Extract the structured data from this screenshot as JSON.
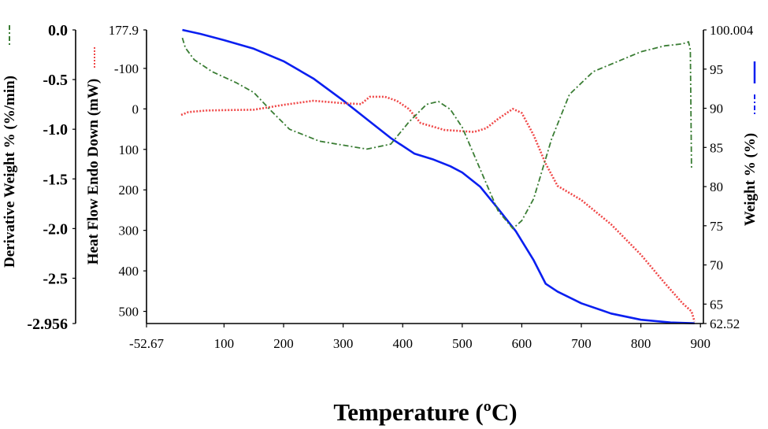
{
  "chart_data": {
    "type": "line",
    "xlabel": "Temperature (ºC)",
    "x_ticks": [
      "-52.67",
      "100",
      "200",
      "300",
      "400",
      "500",
      "600",
      "700",
      "800",
      "900"
    ],
    "xlim": [
      -52.67,
      900
    ],
    "axes": {
      "derivative": {
        "label": "Derivative Weight % (%/min)",
        "ticks": [
          "0.0",
          "-0.5",
          "-1.0",
          "-1.5",
          "-2.0",
          "-2.5",
          "-2.956"
        ],
        "range": [
          0.0,
          -2.956
        ]
      },
      "heat_flow": {
        "label": "Heat Flow Endo Down (mW)",
        "ticks": [
          "177.9",
          "-100",
          "0",
          "100",
          "200",
          "300",
          "400",
          "500"
        ],
        "range": [
          -195,
          530
        ]
      },
      "weight": {
        "label": "Weight % (%)",
        "ticks": [
          "100.004",
          "95",
          "90",
          "85",
          "80",
          "75",
          "70",
          "65",
          "62.52"
        ],
        "range": [
          100.004,
          62.52
        ]
      }
    },
    "colors": {
      "weight": "#0a1ff0",
      "heat_flow": "#f04848",
      "derivative": "#3a7d34"
    },
    "series": [
      {
        "key": "weight",
        "axis": "weight",
        "style": "solid",
        "points": [
          [
            30,
            100.0
          ],
          [
            60,
            99.5
          ],
          [
            100,
            98.7
          ],
          [
            150,
            97.6
          ],
          [
            200,
            96.0
          ],
          [
            250,
            93.8
          ],
          [
            300,
            91.0
          ],
          [
            350,
            88.0
          ],
          [
            380,
            86.2
          ],
          [
            420,
            84.2
          ],
          [
            450,
            83.5
          ],
          [
            480,
            82.6
          ],
          [
            500,
            81.8
          ],
          [
            530,
            80.0
          ],
          [
            560,
            77.2
          ],
          [
            590,
            74.3
          ],
          [
            620,
            70.6
          ],
          [
            640,
            67.6
          ],
          [
            660,
            66.6
          ],
          [
            700,
            65.1
          ],
          [
            750,
            63.8
          ],
          [
            800,
            63.0
          ],
          [
            850,
            62.65
          ],
          [
            890,
            62.55
          ]
        ]
      },
      {
        "key": "heat_flow",
        "axis": "heat_flow",
        "style": "dotted",
        "points": [
          [
            28,
            15
          ],
          [
            40,
            8
          ],
          [
            70,
            4
          ],
          [
            100,
            3
          ],
          [
            150,
            2
          ],
          [
            200,
            -10
          ],
          [
            250,
            -20
          ],
          [
            300,
            -14
          ],
          [
            330,
            -12
          ],
          [
            345,
            -30
          ],
          [
            370,
            -30
          ],
          [
            390,
            -20
          ],
          [
            410,
            0
          ],
          [
            430,
            35
          ],
          [
            470,
            52
          ],
          [
            520,
            57
          ],
          [
            540,
            48
          ],
          [
            560,
            25
          ],
          [
            585,
            0
          ],
          [
            600,
            10
          ],
          [
            620,
            65
          ],
          [
            640,
            135
          ],
          [
            660,
            190
          ],
          [
            700,
            225
          ],
          [
            750,
            285
          ],
          [
            800,
            360
          ],
          [
            840,
            430
          ],
          [
            870,
            480
          ],
          [
            885,
            500
          ],
          [
            890,
            525
          ]
        ]
      },
      {
        "key": "derivative",
        "axis": "derivative",
        "style": "dashdot",
        "points": [
          [
            30,
            -0.08
          ],
          [
            35,
            -0.18
          ],
          [
            50,
            -0.3
          ],
          [
            80,
            -0.42
          ],
          [
            120,
            -0.53
          ],
          [
            150,
            -0.63
          ],
          [
            180,
            -0.82
          ],
          [
            210,
            -1.0
          ],
          [
            260,
            -1.12
          ],
          [
            300,
            -1.16
          ],
          [
            340,
            -1.2
          ],
          [
            380,
            -1.15
          ],
          [
            410,
            -0.93
          ],
          [
            440,
            -0.75
          ],
          [
            460,
            -0.72
          ],
          [
            480,
            -0.8
          ],
          [
            500,
            -0.98
          ],
          [
            530,
            -1.4
          ],
          [
            560,
            -1.82
          ],
          [
            585,
            -2.0
          ],
          [
            600,
            -1.92
          ],
          [
            620,
            -1.7
          ],
          [
            650,
            -1.1
          ],
          [
            680,
            -0.65
          ],
          [
            720,
            -0.42
          ],
          [
            760,
            -0.32
          ],
          [
            800,
            -0.22
          ],
          [
            840,
            -0.16
          ],
          [
            870,
            -0.14
          ],
          [
            880,
            -0.12
          ],
          [
            883,
            -0.2
          ],
          [
            885,
            -1.4
          ]
        ]
      }
    ]
  }
}
